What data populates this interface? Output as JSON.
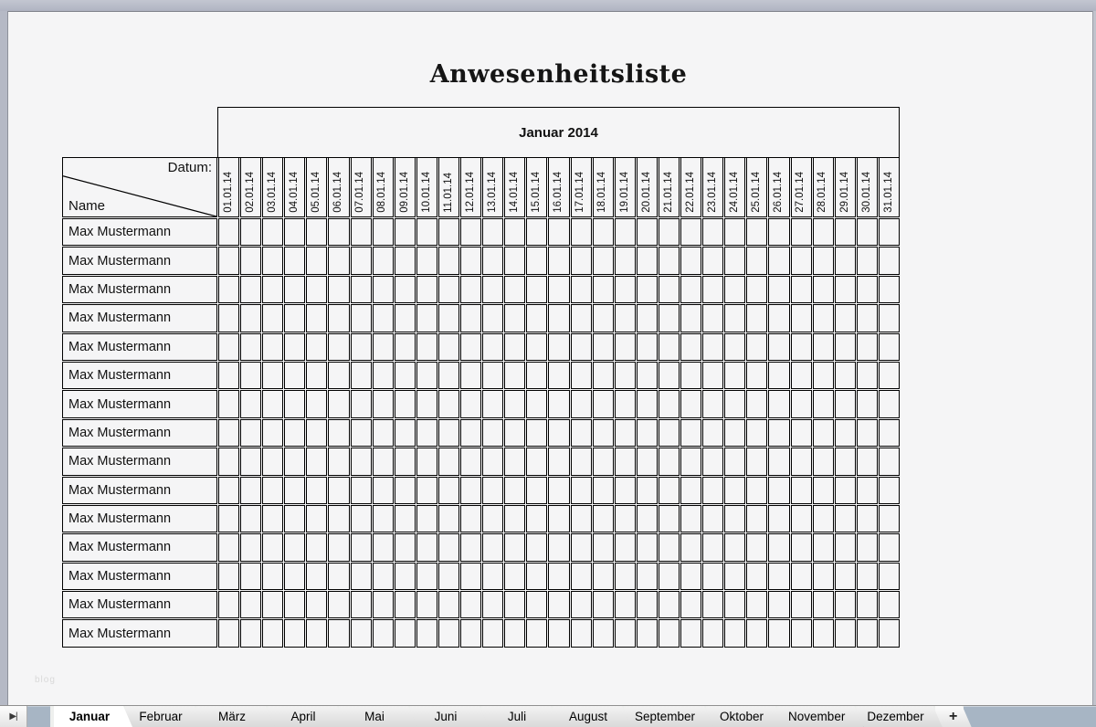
{
  "page": {
    "title": "Anwesenheitsliste",
    "watermark": "blog"
  },
  "table": {
    "month_header": "Januar 2014",
    "datum_label": "Datum:",
    "name_label": "Name",
    "dates": [
      "01.01.14",
      "02.01.14",
      "03.01.14",
      "04.01.14",
      "05.01.14",
      "06.01.14",
      "07.01.14",
      "08.01.14",
      "09.01.14",
      "10.01.14",
      "11.01.14",
      "12.01.14",
      "13.01.14",
      "14.01.14",
      "15.01.14",
      "16.01.14",
      "17.01.14",
      "18.01.14",
      "19.01.14",
      "20.01.14",
      "21.01.14",
      "22.01.14",
      "23.01.14",
      "24.01.14",
      "25.01.14",
      "26.01.14",
      "27.01.14",
      "28.01.14",
      "29.01.14",
      "30.01.14",
      "31.01.14"
    ],
    "rows": [
      "Max Mustermann",
      "Max Mustermann",
      "Max Mustermann",
      "Max Mustermann",
      "Max Mustermann",
      "Max Mustermann",
      "Max Mustermann",
      "Max Mustermann",
      "Max Mustermann",
      "Max Mustermann",
      "Max Mustermann",
      "Max Mustermann",
      "Max Mustermann",
      "Max Mustermann",
      "Max Mustermann"
    ]
  },
  "tab_bar": {
    "nav_icon": "▶|",
    "add_label": "+",
    "tabs": [
      {
        "label": "Januar",
        "active": true
      },
      {
        "label": "Februar",
        "active": false
      },
      {
        "label": "März",
        "active": false
      },
      {
        "label": "April",
        "active": false
      },
      {
        "label": "Mai",
        "active": false
      },
      {
        "label": "Juni",
        "active": false
      },
      {
        "label": "Juli",
        "active": false
      },
      {
        "label": "August",
        "active": false
      },
      {
        "label": "September",
        "active": false
      },
      {
        "label": "Oktober",
        "active": false
      },
      {
        "label": "November",
        "active": false
      },
      {
        "label": "Dezember",
        "active": false
      }
    ]
  },
  "colors": {
    "frame": "#b5b9c5",
    "content_bg": "#f5f5f6",
    "table_line": "#000000",
    "tab_inactive": "#e3e3e3",
    "tab_active": "#ffffff",
    "tab_bar_fill": "#a7b5c4"
  }
}
